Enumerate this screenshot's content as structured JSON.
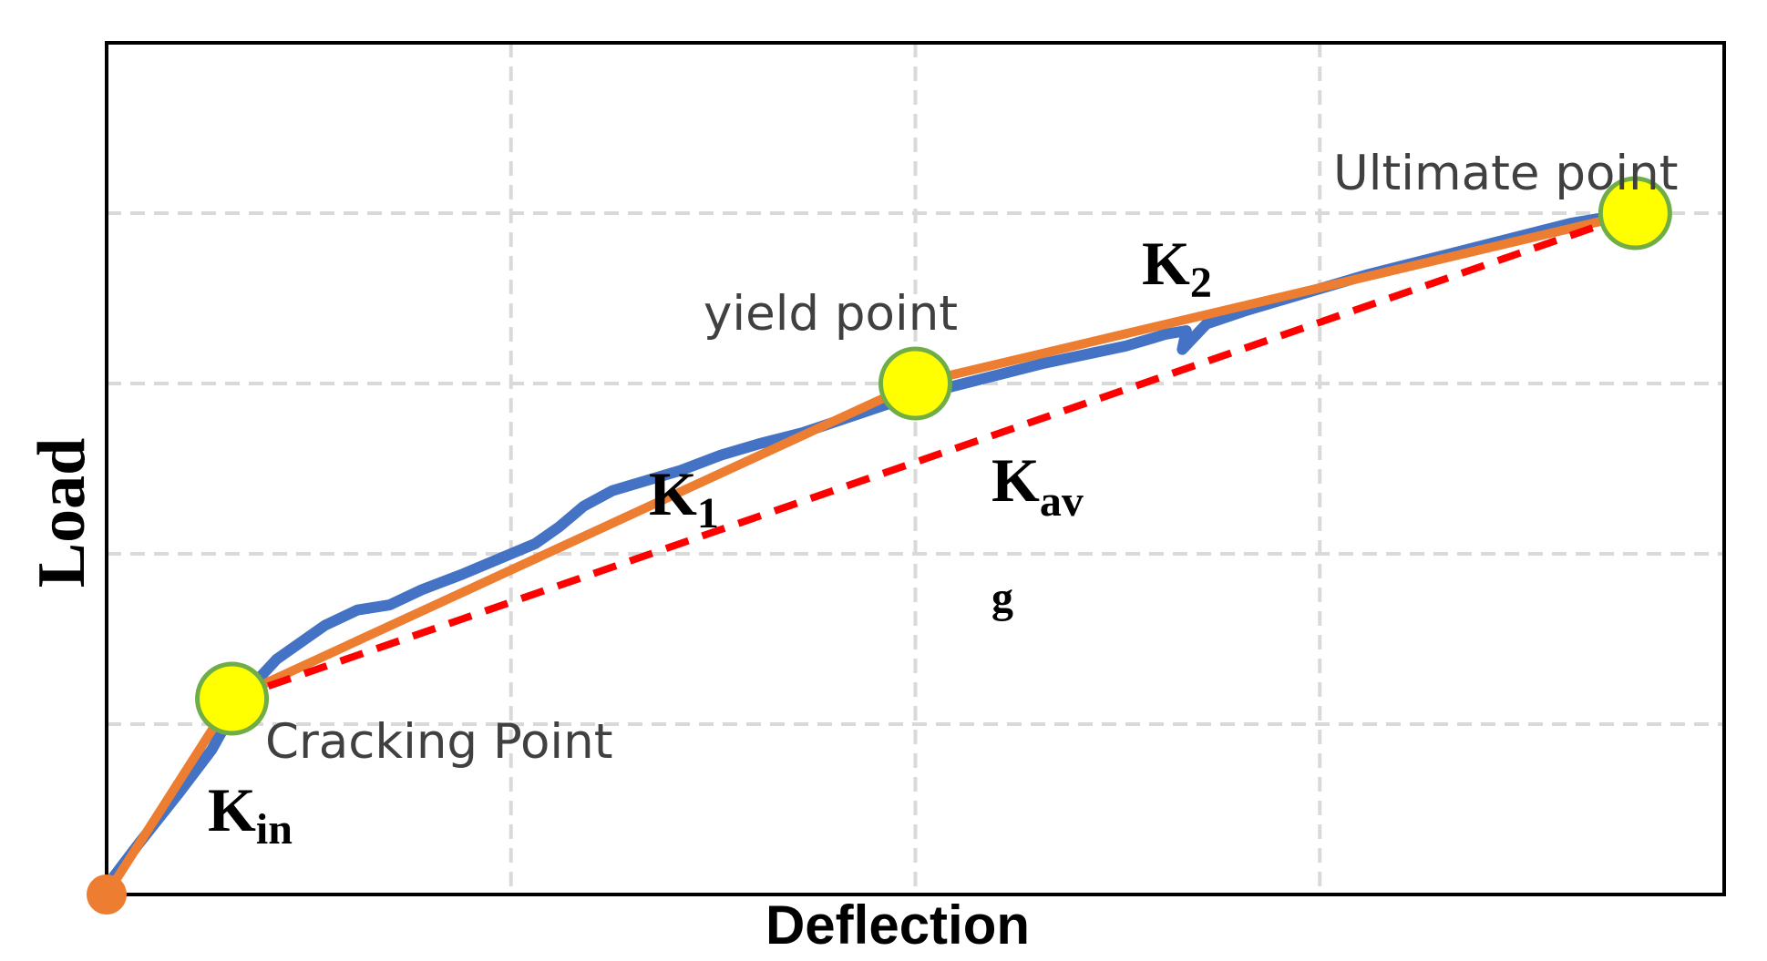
{
  "chart_data": {
    "type": "line",
    "title": "",
    "xlabel": "Deflection",
    "ylabel": "Load",
    "xlim": [
      0,
      4
    ],
    "ylim": [
      0,
      5
    ],
    "grid": true,
    "tick_labels_shown": false,
    "series": [
      {
        "key": "measured",
        "color": "#4472C4",
        "style": "solid",
        "points": [
          [
            0.0,
            0.05
          ],
          [
            0.08,
            0.3
          ],
          [
            0.18,
            0.6
          ],
          [
            0.26,
            0.85
          ],
          [
            0.33,
            1.15
          ],
          [
            0.42,
            1.38
          ],
          [
            0.54,
            1.58
          ],
          [
            0.62,
            1.67
          ],
          [
            0.7,
            1.7
          ],
          [
            0.78,
            1.79
          ],
          [
            0.88,
            1.88
          ],
          [
            0.98,
            1.98
          ],
          [
            1.06,
            2.06
          ],
          [
            1.12,
            2.16
          ],
          [
            1.18,
            2.28
          ],
          [
            1.25,
            2.37
          ],
          [
            1.32,
            2.42
          ],
          [
            1.42,
            2.49
          ],
          [
            1.52,
            2.58
          ],
          [
            1.62,
            2.65
          ],
          [
            1.72,
            2.71
          ],
          [
            1.82,
            2.79
          ],
          [
            1.92,
            2.87
          ],
          [
            2.02,
            2.94
          ],
          [
            2.12,
            3.0
          ],
          [
            2.22,
            3.06
          ],
          [
            2.32,
            3.12
          ],
          [
            2.42,
            3.17
          ],
          [
            2.52,
            3.22
          ],
          [
            2.62,
            3.29
          ],
          [
            2.67,
            3.31
          ],
          [
            2.66,
            3.2
          ],
          [
            2.72,
            3.35
          ],
          [
            2.82,
            3.43
          ],
          [
            2.92,
            3.5
          ],
          [
            3.02,
            3.57
          ],
          [
            3.12,
            3.64
          ],
          [
            3.22,
            3.7
          ],
          [
            3.32,
            3.76
          ],
          [
            3.42,
            3.82
          ],
          [
            3.52,
            3.88
          ],
          [
            3.62,
            3.94
          ],
          [
            3.72,
            3.98
          ],
          [
            3.78,
            4.0
          ]
        ]
      },
      {
        "key": "idealized",
        "color": "#ED7D31",
        "style": "solid",
        "points": [
          [
            0.0,
            0.0
          ],
          [
            0.31,
            1.15
          ],
          [
            2.0,
            3.0
          ],
          [
            3.78,
            4.0
          ]
        ]
      },
      {
        "key": "secant",
        "color": "#FF0000",
        "style": "dashed",
        "points": [
          [
            0.31,
            1.15
          ],
          [
            3.78,
            4.0
          ]
        ]
      }
    ],
    "points": [
      {
        "name": "Cracking Point",
        "x": 0.31,
        "y": 1.15
      },
      {
        "name": "yield point",
        "x": 2.0,
        "y": 3.0
      },
      {
        "name": "Ultimate point",
        "x": 3.78,
        "y": 4.0
      }
    ],
    "origin_marker": {
      "x": 0.0,
      "y": 0.0,
      "color": "#ED7D31"
    },
    "stiffness_labels": [
      {
        "base": "K",
        "sub": "in"
      },
      {
        "base": "K",
        "sub": "1"
      },
      {
        "base": "K",
        "sub": "2"
      },
      {
        "base": "K",
        "sub": "av"
      },
      {
        "base": "",
        "sub": "g"
      }
    ],
    "colors": {
      "point_fill": "#FFFF00",
      "point_stroke": "#70AD47",
      "grid": "#D9D9D9",
      "frame": "#000000"
    }
  }
}
